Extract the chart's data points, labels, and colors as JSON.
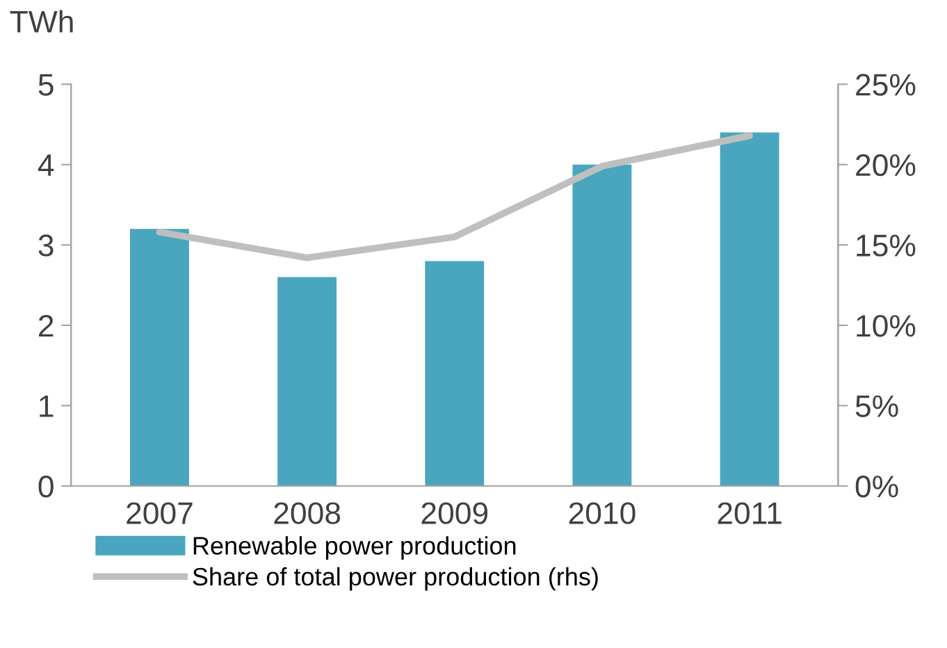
{
  "chart_data": {
    "type": "bar",
    "ylabel": "TWh",
    "categories": [
      "2007",
      "2008",
      "2009",
      "2010",
      "2011"
    ],
    "series": [
      {
        "name": "Renewable power production",
        "color": "#4aa5be",
        "values": [
          3.2,
          2.6,
          2.8,
          4.0,
          4.4
        ]
      },
      {
        "name": "Share of total power production (rhs)",
        "type": "line",
        "axis": "y2",
        "color": "#bfbfbf",
        "values": [
          15.8,
          14.2,
          15.5,
          19.9,
          21.8
        ]
      }
    ],
    "ylim": [
      0,
      5
    ],
    "yticks": [
      0,
      1,
      2,
      3,
      4,
      5
    ],
    "y2lim": [
      0,
      25
    ],
    "y2ticks": [
      {
        "value": 0,
        "label": "0%"
      },
      {
        "value": 5,
        "label": "5%"
      },
      {
        "value": 10,
        "label": "10%"
      },
      {
        "value": 15,
        "label": "15%"
      },
      {
        "value": 20,
        "label": "20%"
      },
      {
        "value": 25,
        "label": "25%"
      }
    ],
    "grid": false,
    "legend": "bottom",
    "marker": "none",
    "line_style": "solid"
  }
}
